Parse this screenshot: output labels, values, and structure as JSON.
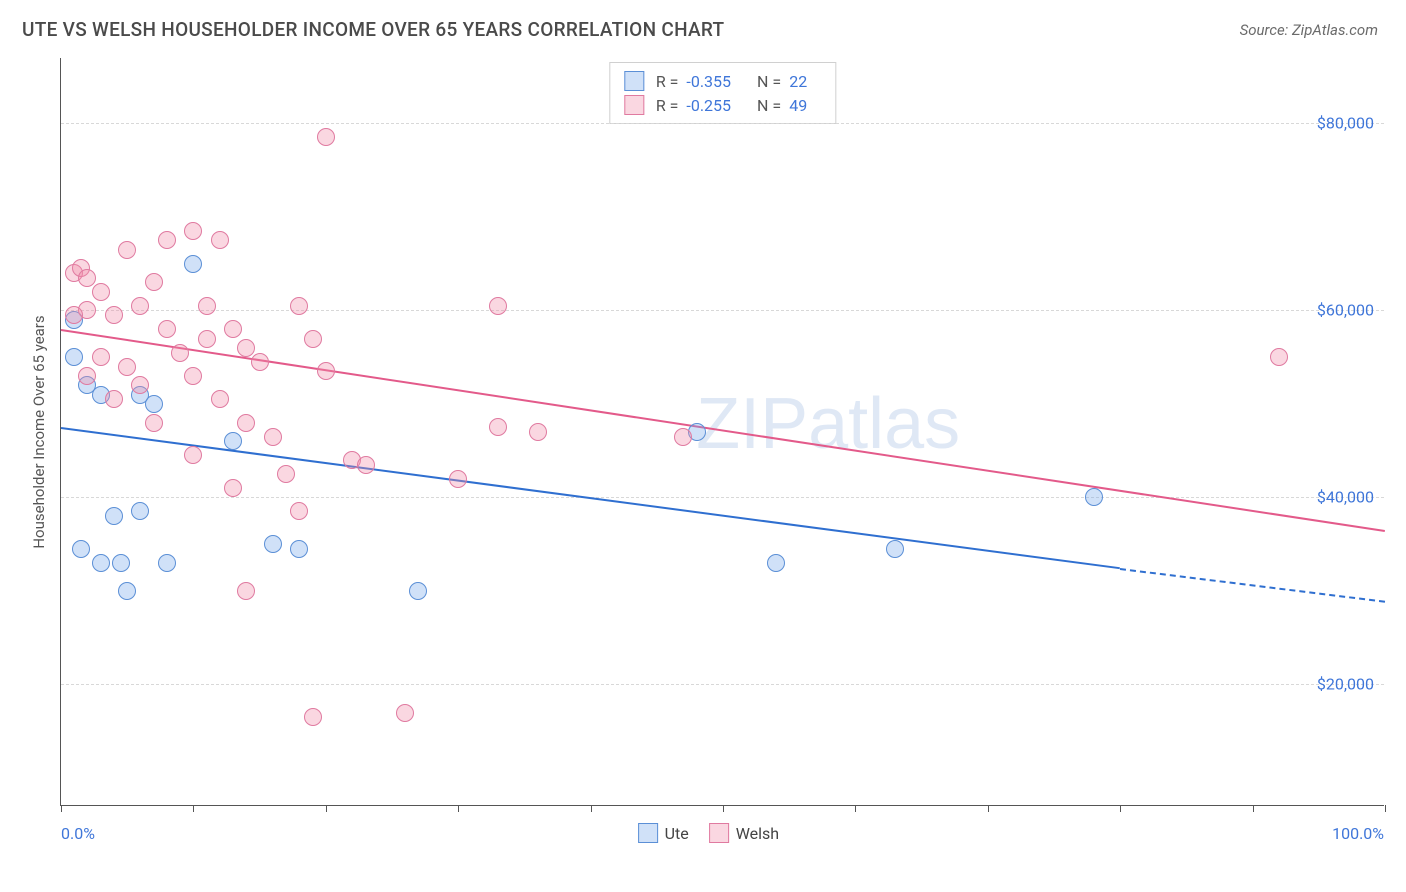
{
  "title": "UTE VS WELSH HOUSEHOLDER INCOME OVER 65 YEARS CORRELATION CHART",
  "source": "Source: ZipAtlas.com",
  "watermark": "ZIPatlas",
  "chart": {
    "type": "scatter",
    "x_min": 0,
    "x_max": 100,
    "y_min": 7000,
    "y_max": 87000,
    "y_gridlines": [
      20000,
      40000,
      60000,
      80000
    ],
    "y_tick_labels": [
      "$20,000",
      "$40,000",
      "$60,000",
      "$80,000"
    ],
    "x_ticks": [
      0,
      10,
      20,
      30,
      40,
      50,
      60,
      70,
      80,
      90,
      100
    ],
    "x_label_min": "0.0%",
    "x_label_max": "100.0%",
    "y_axis_title": "Householder Income Over 65 years",
    "series": [
      {
        "name": "Ute",
        "color_fill": "rgba(120, 170, 235, 0.35)",
        "color_stroke": "#5b8fd6",
        "trend_color": "#2f6fd0",
        "point_radius": 9,
        "R": "-0.355",
        "N": "22",
        "trend": {
          "x1": 0,
          "y1": 47500,
          "x2_solid": 80,
          "y2_solid": 32500,
          "x2_dash": 100,
          "y2_dash": 29000
        },
        "points": [
          [
            1,
            59000
          ],
          [
            1,
            55000
          ],
          [
            2,
            52000
          ],
          [
            3,
            51000
          ],
          [
            4,
            38000
          ],
          [
            1.5,
            34500
          ],
          [
            3,
            33000
          ],
          [
            4.5,
            33000
          ],
          [
            8,
            33000
          ],
          [
            5,
            30000
          ],
          [
            6,
            51000
          ],
          [
            7,
            50000
          ],
          [
            10,
            65000
          ],
          [
            13,
            46000
          ],
          [
            16,
            35000
          ],
          [
            18,
            34500
          ],
          [
            27,
            30000
          ],
          [
            48,
            47000
          ],
          [
            54,
            33000
          ],
          [
            63,
            34500
          ],
          [
            78,
            40000
          ],
          [
            6,
            38500
          ]
        ]
      },
      {
        "name": "Welsh",
        "color_fill": "rgba(240, 140, 170, 0.35)",
        "color_stroke": "#e07aa0",
        "trend_color": "#e35a8a",
        "point_radius": 9,
        "R": "-0.255",
        "N": "49",
        "trend": {
          "x1": 0,
          "y1": 58000,
          "x2_solid": 100,
          "y2_solid": 36500,
          "x2_dash": 100,
          "y2_dash": 36500
        },
        "points": [
          [
            1,
            64000
          ],
          [
            1.5,
            64500
          ],
          [
            2,
            63500
          ],
          [
            2,
            60000
          ],
          [
            1,
            59500
          ],
          [
            3,
            62000
          ],
          [
            4,
            59500
          ],
          [
            3,
            55000
          ],
          [
            2,
            53000
          ],
          [
            5,
            66500
          ],
          [
            6,
            60500
          ],
          [
            7,
            63000
          ],
          [
            8,
            58000
          ],
          [
            5,
            54000
          ],
          [
            6,
            52000
          ],
          [
            8,
            67500
          ],
          [
            10,
            68500
          ],
          [
            11,
            60500
          ],
          [
            11,
            57000
          ],
          [
            12,
            67500
          ],
          [
            13,
            58000
          ],
          [
            10,
            53000
          ],
          [
            12,
            50500
          ],
          [
            14,
            56000
          ],
          [
            15,
            54500
          ],
          [
            14,
            48000
          ],
          [
            16,
            46500
          ],
          [
            13,
            41000
          ],
          [
            17,
            42500
          ],
          [
            18,
            60500
          ],
          [
            19,
            57000
          ],
          [
            20,
            53500
          ],
          [
            20,
            78500
          ],
          [
            22,
            44000
          ],
          [
            23,
            43500
          ],
          [
            18,
            38500
          ],
          [
            14,
            30000
          ],
          [
            19,
            16500
          ],
          [
            26,
            17000
          ],
          [
            30,
            42000
          ],
          [
            33,
            60500
          ],
          [
            36,
            47000
          ],
          [
            33,
            47500
          ],
          [
            47,
            46500
          ],
          [
            92,
            55000
          ],
          [
            4,
            50500
          ],
          [
            7,
            48000
          ],
          [
            9,
            55500
          ],
          [
            10,
            44500
          ]
        ]
      }
    ]
  },
  "colors": {
    "axis": "#555555",
    "grid": "#d8d8d8",
    "tick_text": "#3f76d9",
    "background": "#ffffff"
  }
}
